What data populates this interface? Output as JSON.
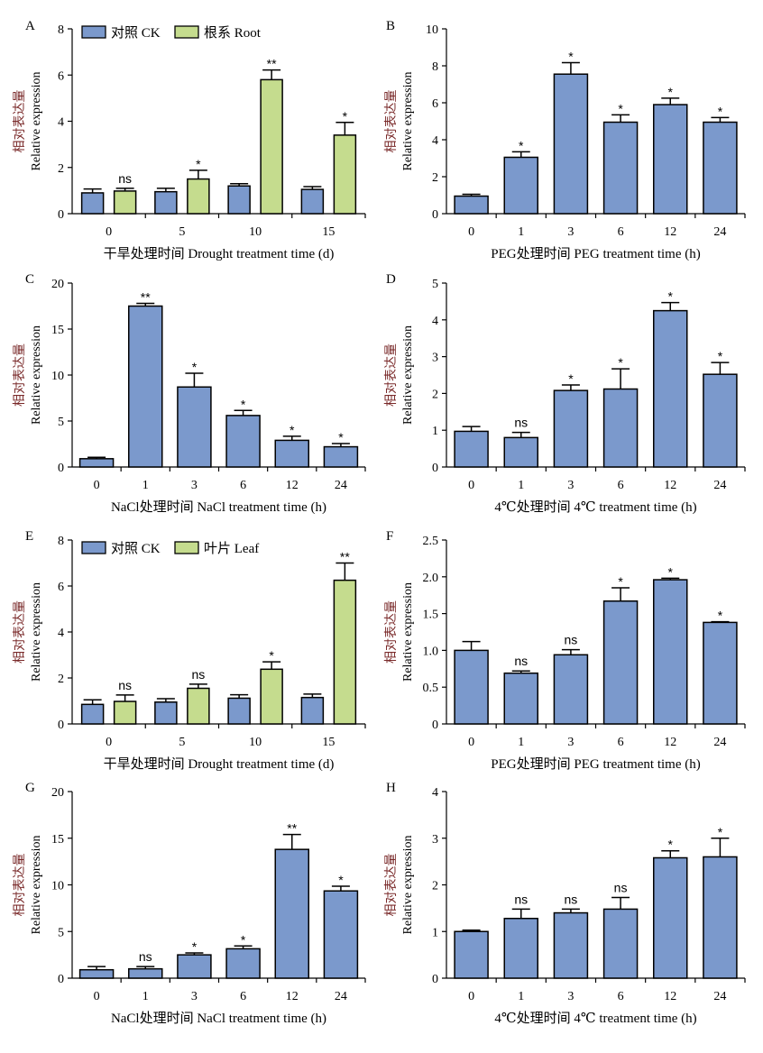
{
  "colors": {
    "ck": "#7b99cc",
    "treat": "#c5dc8e",
    "stroke": "#000000"
  },
  "chart_data": [
    {
      "panel": "A",
      "type": "bar",
      "categories": [
        "0",
        "5",
        "10",
        "15"
      ],
      "xlabel": "干旱处理时间 Drought treatment time (d)",
      "ylabel_cn": "相对表达量",
      "ylabel_en": "Relative expression",
      "ylim": [
        0,
        8
      ],
      "yticks": [
        "0",
        "2",
        "4",
        "6",
        "8"
      ],
      "legend": [
        "对照 CK",
        "根系 Root"
      ],
      "series": [
        {
          "name": "对照 CK",
          "values": [
            0.9,
            0.95,
            1.2,
            1.05
          ],
          "errors": [
            0.17,
            0.15,
            0.1,
            0.12
          ]
        },
        {
          "name": "根系 Root",
          "values": [
            0.98,
            1.5,
            5.8,
            3.4
          ],
          "errors": [
            0.12,
            0.38,
            0.42,
            0.55
          ]
        }
      ],
      "significance": [
        "ns",
        "*",
        "**",
        "*"
      ]
    },
    {
      "panel": "B",
      "type": "bar",
      "categories": [
        "0",
        "1",
        "3",
        "6",
        "12",
        "24"
      ],
      "xlabel": "PEG处理时间 PEG treatment time (h)",
      "ylabel_cn": "相对表达量",
      "ylabel_en": "Relative expression",
      "ylim": [
        0,
        10
      ],
      "yticks": [
        "0",
        "2",
        "4",
        "6",
        "8",
        "10"
      ],
      "values": [
        0.95,
        3.05,
        7.55,
        4.95,
        5.9,
        4.95
      ],
      "errors": [
        0.1,
        0.3,
        0.62,
        0.4,
        0.35,
        0.25
      ],
      "significance": [
        "",
        "*",
        "*",
        "*",
        "*",
        "*"
      ]
    },
    {
      "panel": "C",
      "type": "bar",
      "categories": [
        "0",
        "1",
        "3",
        "6",
        "12",
        "24"
      ],
      "xlabel": "NaCl处理时间 NaCl treatment time (h)",
      "ylabel_cn": "相对表达量",
      "ylabel_en": "Relative expression",
      "ylim": [
        0,
        20
      ],
      "yticks": [
        "0",
        "5",
        "10",
        "15",
        "20"
      ],
      "values": [
        0.9,
        17.5,
        8.7,
        5.6,
        2.9,
        2.2
      ],
      "errors": [
        0.15,
        0.3,
        1.5,
        0.55,
        0.45,
        0.35
      ],
      "significance": [
        "",
        "**",
        "*",
        "*",
        "*",
        "*"
      ]
    },
    {
      "panel": "D",
      "type": "bar",
      "categories": [
        "0",
        "1",
        "3",
        "6",
        "12",
        "24"
      ],
      "xlabel": "4℃处理时间 4℃ treatment time (h)",
      "ylabel_cn": "相对表达量",
      "ylabel_en": "Relative expression",
      "ylim": [
        0,
        5
      ],
      "yticks": [
        "0",
        "1",
        "2",
        "3",
        "4",
        "5"
      ],
      "values": [
        0.97,
        0.8,
        2.08,
        2.12,
        4.25,
        2.52
      ],
      "errors": [
        0.13,
        0.14,
        0.15,
        0.55,
        0.22,
        0.32
      ],
      "significance": [
        "",
        "ns",
        "*",
        "*",
        "*",
        "*"
      ]
    },
    {
      "panel": "E",
      "type": "bar",
      "categories": [
        "0",
        "5",
        "10",
        "15"
      ],
      "xlabel": "干旱处理时间 Drought treatment time (d)",
      "ylabel_cn": "相对表达量",
      "ylabel_en": "Relative expression",
      "ylim": [
        0,
        8
      ],
      "yticks": [
        "0",
        "2",
        "4",
        "6",
        "8"
      ],
      "legend": [
        "对照 CK",
        "叶片 Leaf"
      ],
      "series": [
        {
          "name": "对照 CK",
          "values": [
            0.85,
            0.95,
            1.12,
            1.15
          ],
          "errors": [
            0.2,
            0.15,
            0.15,
            0.15
          ]
        },
        {
          "name": "叶片 Leaf",
          "values": [
            0.98,
            1.55,
            2.38,
            6.25
          ],
          "errors": [
            0.28,
            0.18,
            0.32,
            0.75
          ]
        }
      ],
      "significance": [
        "ns",
        "ns",
        "*",
        "**"
      ]
    },
    {
      "panel": "F",
      "type": "bar",
      "categories": [
        "0",
        "1",
        "3",
        "6",
        "12",
        "24"
      ],
      "xlabel": "PEG处理时间 PEG treatment time (h)",
      "ylabel_cn": "相对表达量",
      "ylabel_en": "Relative expression",
      "ylim": [
        0,
        2.5
      ],
      "yticks": [
        "0",
        "0.5",
        "1.0",
        "1.5",
        "2.0",
        "2.5"
      ],
      "values": [
        1.0,
        0.69,
        0.94,
        1.67,
        1.96,
        1.38
      ],
      "errors": [
        0.12,
        0.03,
        0.07,
        0.18,
        0.02,
        0.01
      ],
      "significance": [
        "",
        "ns",
        "ns",
        "*",
        "*",
        "*"
      ]
    },
    {
      "panel": "G",
      "type": "bar",
      "categories": [
        "0",
        "1",
        "3",
        "6",
        "12",
        "24"
      ],
      "xlabel": "NaCl处理时间 NaCl treatment time (h)",
      "ylabel_cn": "相对表达量",
      "ylabel_en": "Relative expression",
      "ylim": [
        0,
        20
      ],
      "yticks": [
        "0",
        "5",
        "10",
        "15",
        "20"
      ],
      "values": [
        0.9,
        1.0,
        2.5,
        3.15,
        13.8,
        9.35
      ],
      "errors": [
        0.35,
        0.25,
        0.2,
        0.3,
        1.6,
        0.5
      ],
      "significance": [
        "",
        "ns",
        "*",
        "*",
        "**",
        "*"
      ]
    },
    {
      "panel": "H",
      "type": "bar",
      "categories": [
        "0",
        "1",
        "3",
        "6",
        "12",
        "24"
      ],
      "xlabel": "4℃处理时间 4℃ treatment time (h)",
      "ylabel_cn": "相对表达量",
      "ylabel_en": "Relative expression",
      "ylim": [
        0,
        4
      ],
      "yticks": [
        "0",
        "1",
        "2",
        "3",
        "4"
      ],
      "values": [
        1.0,
        1.28,
        1.4,
        1.48,
        2.58,
        2.6
      ],
      "errors": [
        0.03,
        0.2,
        0.08,
        0.25,
        0.15,
        0.4
      ],
      "significance": [
        "",
        "ns",
        "ns",
        "ns",
        "*",
        "*"
      ]
    }
  ]
}
